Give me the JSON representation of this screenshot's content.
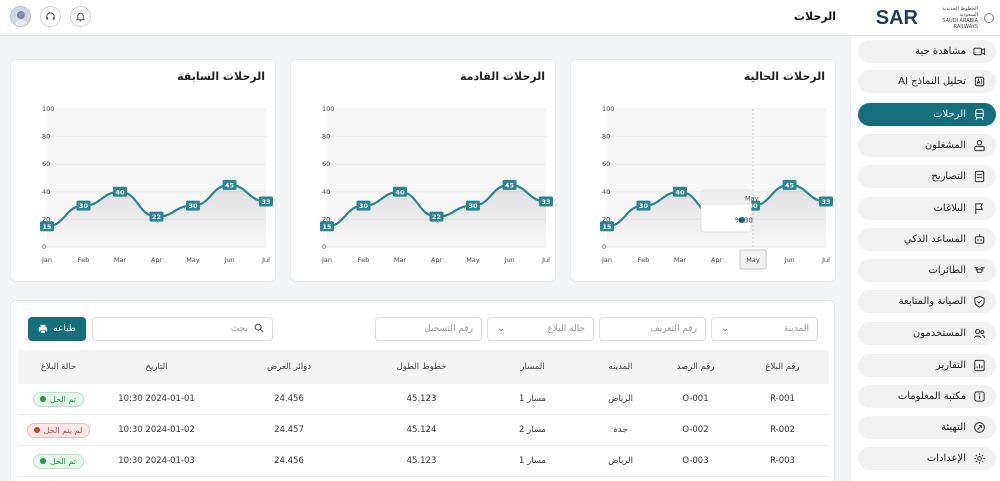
{
  "header": {
    "logo_text": "SAR",
    "logo_sub_ar": "الخطوط الحديدية السعودية",
    "logo_sub_en": "SAUDI ARABIA RAILWAYS",
    "page_title": "الرحلات"
  },
  "sidebar": {
    "items": [
      {
        "label": "مشاهدة حية",
        "icon": "video-camera-icon"
      },
      {
        "label": "تحليل النماذج AI",
        "icon": "ai-analysis-icon"
      },
      {
        "label": "الرحلات",
        "icon": "train-icon",
        "active": true
      },
      {
        "label": "المشغلون",
        "icon": "operators-icon"
      },
      {
        "label": "التصاريح",
        "icon": "permits-icon"
      },
      {
        "label": "البلاغات",
        "icon": "reports-flag-icon"
      },
      {
        "label": "المساعد الذكي",
        "icon": "robot-icon"
      },
      {
        "label": "الطائرات",
        "icon": "drone-icon"
      },
      {
        "label": "الصيانة والمتابعة",
        "icon": "shield-check-icon"
      },
      {
        "label": "المستخدمون",
        "icon": "users-icon"
      },
      {
        "label": "التقارير",
        "icon": "chart-report-icon"
      },
      {
        "label": "مكتبة المعلومات",
        "icon": "info-library-icon"
      },
      {
        "label": "التهيئة",
        "icon": "configuration-icon"
      },
      {
        "label": "الإعدادات",
        "icon": "gear-icon"
      }
    ]
  },
  "charts": {
    "current": {
      "title": "الرحلات الحالية"
    },
    "upcoming": {
      "title": "الرحلات القادمة"
    },
    "previous": {
      "title": "الرحلات السابقة"
    },
    "tooltip": {
      "month": "May",
      "value": "30 %"
    }
  },
  "chart_data": [
    {
      "type": "area",
      "title": "الرحلات الحالية",
      "categories": [
        "Jan",
        "Feb",
        "Mar",
        "Apr",
        "May",
        "Jun",
        "Jul"
      ],
      "values": [
        15,
        30,
        40,
        22,
        30,
        45,
        33
      ],
      "ylim": [
        0,
        100
      ],
      "yticks": [
        0,
        20,
        40,
        60,
        80,
        100
      ],
      "color": "#2a8595",
      "highlight": "May"
    },
    {
      "type": "area",
      "title": "الرحلات القادمة",
      "categories": [
        "Jan",
        "Feb",
        "Mar",
        "Apr",
        "May",
        "Jun",
        "Jul"
      ],
      "values": [
        15,
        30,
        40,
        22,
        30,
        45,
        33
      ],
      "ylim": [
        0,
        100
      ],
      "yticks": [
        0,
        20,
        40,
        60,
        80,
        100
      ],
      "color": "#2a8595"
    },
    {
      "type": "area",
      "title": "الرحلات السابقة",
      "categories": [
        "Jan",
        "Feb",
        "Mar",
        "Apr",
        "May",
        "Jun",
        "Jul"
      ],
      "values": [
        15,
        30,
        40,
        22,
        30,
        45,
        33
      ],
      "ylim": [
        0,
        100
      ],
      "yticks": [
        0,
        20,
        40,
        60,
        80,
        100
      ],
      "color": "#2a8595"
    }
  ],
  "filters": {
    "city_placeholder": "المدينة",
    "id_placeholder": "رقم التعريف",
    "status_placeholder": "حالة البلاغ",
    "registration_placeholder": "رقم التسجيل",
    "search_placeholder": "بحث",
    "print_label": "طباعه"
  },
  "table": {
    "columns": [
      "رقم البلاغ",
      "رقم الرصد",
      "المدينه",
      "المسار",
      "خطوط الطول",
      "دوائر العرض",
      "التاريخ",
      "حالة البلاغ"
    ],
    "rows": [
      {
        "report": "R-001",
        "obs": "O-001",
        "city": "الرياض",
        "track": "مسار 1",
        "lon": "45.123",
        "lat": "24.456",
        "date": "2024-01-01 10:30",
        "status": "تم الحل",
        "status_type": "ok"
      },
      {
        "report": "R-002",
        "obs": "O-002",
        "city": "جدة",
        "track": "مسار 2",
        "lon": "45.124",
        "lat": "24.457",
        "date": "2024-01-02 10:30",
        "status": "لم يتم الحل",
        "status_type": "bad"
      },
      {
        "report": "R-003",
        "obs": "O-003",
        "city": "الرياض",
        "track": "مسار 1",
        "lon": "45.123",
        "lat": "24.456",
        "date": "2024-01-03 10:30",
        "status": "تم الحل",
        "status_type": "ok"
      }
    ]
  },
  "colors": {
    "accent": "#146e7c",
    "line": "#2a8595"
  }
}
